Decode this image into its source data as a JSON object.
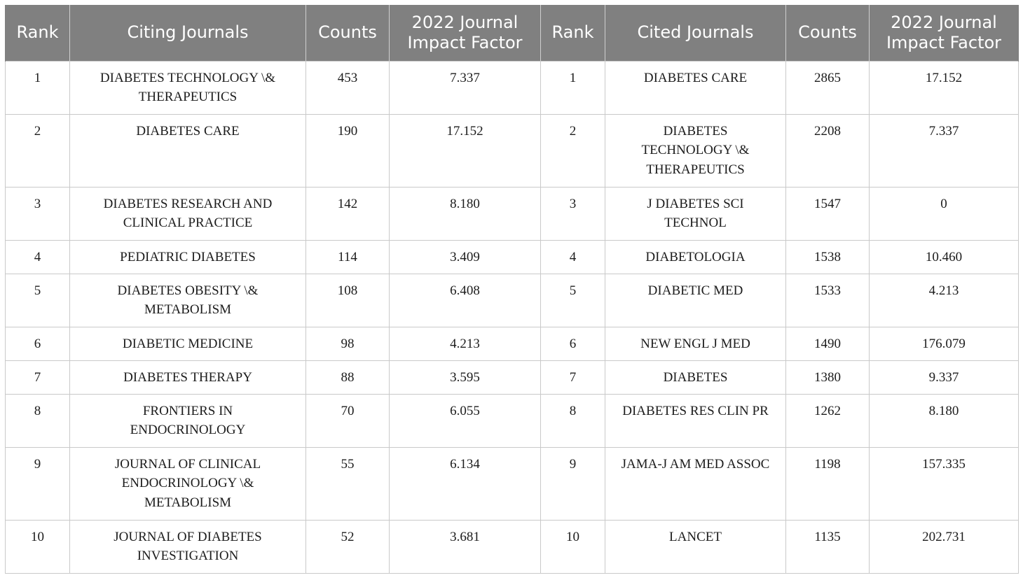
{
  "headers": [
    "Rank",
    "Citing Journals",
    "Counts",
    "2022 Journal Impact Factor",
    "Rank",
    "Cited Journals",
    "Counts",
    "2022 Journal Impact Factor"
  ],
  "rows": [
    {
      "rank": "1",
      "citing_journal": "DIABETES TECHNOLOGY \\& THERAPEUTICS",
      "citing_counts": "453",
      "citing_if": "7.337",
      "cited_rank": "1",
      "cited_journal": "DIABETES CARE",
      "cited_counts": "2865",
      "cited_if": "17.152"
    },
    {
      "rank": "2",
      "citing_journal": "DIABETES CARE",
      "citing_counts": "190",
      "citing_if": "17.152",
      "cited_rank": "2",
      "cited_journal": "DIABETES TECHNOLOGY \\& THERAPEUTICS",
      "cited_counts": "2208",
      "cited_if": "7.337"
    },
    {
      "rank": "3",
      "citing_journal": "DIABETES RESEARCH AND CLINICAL PRACTICE",
      "citing_counts": "142",
      "citing_if": "8.180",
      "cited_rank": "3",
      "cited_journal": "J DIABETES SCI TECHNOL",
      "cited_counts": "1547",
      "cited_if": "0"
    },
    {
      "rank": "4",
      "citing_journal": "PEDIATRIC DIABETES",
      "citing_counts": "114",
      "citing_if": "3.409",
      "cited_rank": "4",
      "cited_journal": "DIABETOLOGIA",
      "cited_counts": "1538",
      "cited_if": "10.460"
    },
    {
      "rank": "5",
      "citing_journal": "DIABETES OBESITY \\& METABOLISM",
      "citing_counts": "108",
      "citing_if": "6.408",
      "cited_rank": "5",
      "cited_journal": "DIABETIC MED",
      "cited_counts": "1533",
      "cited_if": "4.213"
    },
    {
      "rank": "6",
      "citing_journal": "DIABETIC MEDICINE",
      "citing_counts": "98",
      "citing_if": "4.213",
      "cited_rank": "6",
      "cited_journal": "NEW ENGL J MED",
      "cited_counts": "1490",
      "cited_if": "176.079"
    },
    {
      "rank": "7",
      "citing_journal": "DIABETES THERAPY",
      "citing_counts": "88",
      "citing_if": "3.595",
      "cited_rank": "7",
      "cited_journal": "DIABETES",
      "cited_counts": "1380",
      "cited_if": "9.337"
    },
    {
      "rank": "8",
      "citing_journal": "FRONTIERS IN ENDOCRINOLOGY",
      "citing_counts": "70",
      "citing_if": "6.055",
      "cited_rank": "8",
      "cited_journal": "DIABETES RES CLIN PR",
      "cited_counts": "1262",
      "cited_if": "8.180"
    },
    {
      "rank": "9",
      "citing_journal": "JOURNAL OF CLINICAL ENDOCRINOLOGY \\& METABOLISM",
      "citing_counts": "55",
      "citing_if": "6.134",
      "cited_rank": "9",
      "cited_journal": "JAMA-J AM MED ASSOC",
      "cited_counts": "1198",
      "cited_if": "157.335"
    },
    {
      "rank": "10",
      "citing_journal": "JOURNAL OF DIABETES INVESTIGATION",
      "citing_counts": "52",
      "citing_if": "3.681",
      "cited_rank": "10",
      "cited_journal": "LANCET",
      "cited_counts": "1135",
      "cited_if": "202.731"
    }
  ],
  "colors": {
    "header_bg": "#808080",
    "header_text": "#ffffff",
    "grid": "#c9c9c9",
    "cell_text": "#1c1c1c"
  }
}
